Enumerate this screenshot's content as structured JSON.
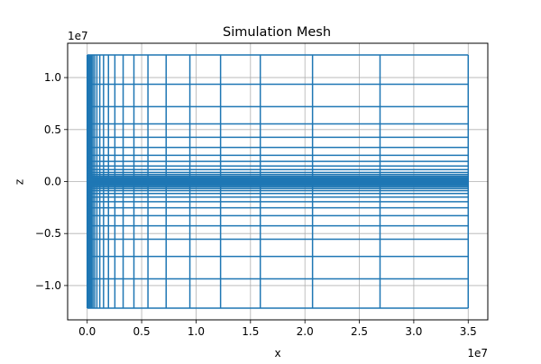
{
  "chart_data": {
    "type": "line",
    "title": "Simulation Mesh",
    "xlabel": "x",
    "ylabel": "z",
    "x_offset_label": "1e7",
    "y_offset_label": "1e7",
    "xlim": [
      -0.18,
      3.68
    ],
    "ylim": [
      -1.33,
      1.33
    ],
    "x_ticks": [
      0.0,
      0.5,
      1.0,
      1.5,
      2.0,
      2.5,
      3.0,
      3.5
    ],
    "x_tick_labels": [
      "0.0",
      "0.5",
      "1.0",
      "1.5",
      "2.0",
      "2.5",
      "3.0",
      "3.5"
    ],
    "y_ticks": [
      -1.0,
      -0.5,
      0.0,
      0.5,
      1.0
    ],
    "y_tick_labels": [
      "−1.0",
      "−0.5",
      "0.0",
      "0.5",
      "1.0"
    ],
    "grid": true,
    "line_color": "#1f77b4",
    "grid_color": "#b0b0b0",
    "x_nodes": [
      0,
      0.001,
      0.0013,
      0.0017,
      0.0022,
      0.0029,
      0.0038,
      0.005,
      0.0065,
      0.0084,
      0.0109,
      0.0142,
      0.0184,
      0.0239,
      0.0311,
      0.0404,
      0.0526,
      0.0683,
      0.0888,
      0.1155,
      0.15,
      0.195,
      0.254,
      0.33,
      0.429,
      0.558,
      0.725,
      0.943,
      1.225,
      1.59,
      2.07,
      2.69,
      3.5
    ],
    "z_nodes": [
      -1.217,
      -0.936,
      -0.72,
      -0.554,
      -0.426,
      -0.328,
      -0.252,
      -0.194,
      -0.149,
      -0.115,
      -0.088,
      -0.068,
      -0.052,
      -0.04,
      -0.031,
      -0.024,
      -0.018,
      -0.014,
      -0.011,
      -0.008,
      -0.006,
      -0.004,
      -0.002,
      0,
      0.002,
      0.004,
      0.006,
      0.008,
      0.011,
      0.014,
      0.018,
      0.024,
      0.031,
      0.04,
      0.052,
      0.068,
      0.088,
      0.115,
      0.149,
      0.194,
      0.252,
      0.328,
      0.426,
      0.554,
      0.72,
      0.936,
      1.217
    ]
  }
}
